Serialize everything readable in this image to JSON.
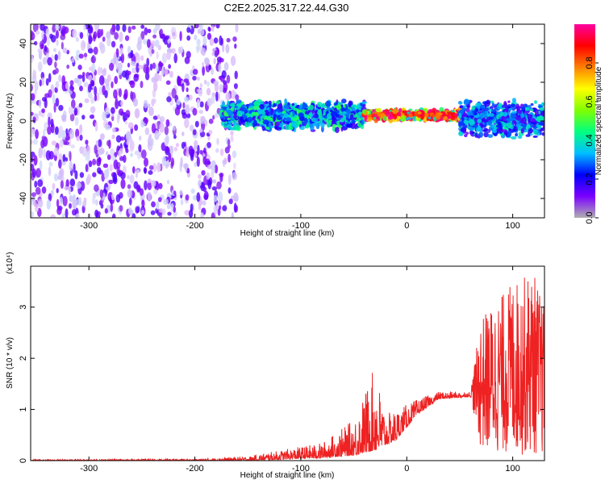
{
  "title": "C2E2.2025.317.22.44.G30",
  "chart_data": [
    {
      "type": "heatmap",
      "xlabel": "Height of straight line (km)",
      "ylabel": "Frequency (Hz)",
      "xlim": [
        -355,
        130
      ],
      "ylim": [
        -50,
        50
      ],
      "xticks": [
        -300,
        -200,
        -100,
        0,
        100
      ],
      "yticks": [
        -40,
        -20,
        0,
        20,
        40
      ],
      "colorbar": {
        "label": "Normalized spectral amplitude",
        "range": [
          0.0,
          1.0
        ],
        "ticks": [
          0.0,
          0.2,
          0.4,
          0.6,
          0.8
        ],
        "colors": [
          "#b0b0b0",
          "#7b00ff",
          "#0000ff",
          "#00bfff",
          "#00ff80",
          "#80ff00",
          "#ffff00",
          "#ff8000",
          "#ff0000",
          "#ff00a0"
        ]
      },
      "bands": [
        {
          "x": [
            -355,
            -160
          ],
          "freq_center": 0,
          "freq_halfwidth": 50,
          "amplitude": 0.12
        },
        {
          "x": [
            -175,
            -40
          ],
          "freq_center": 3,
          "freq_halfwidth": 8,
          "amplitude": 0.35
        },
        {
          "x": [
            -40,
            50
          ],
          "freq_center": 3,
          "freq_halfwidth": 3,
          "amplitude": 0.85
        },
        {
          "x": [
            50,
            130
          ],
          "freq_center": 1,
          "freq_halfwidth": 10,
          "amplitude": 0.3
        }
      ]
    },
    {
      "type": "line",
      "xlabel": "Height of straight line (km)",
      "ylabel": "SNR (10 * v/v)",
      "y_multiplier": "(x10⁴)",
      "xlim": [
        -355,
        130
      ],
      "ylim": [
        0,
        3.8
      ],
      "xticks": [
        -300,
        -200,
        -100,
        0,
        100
      ],
      "yticks": [
        0,
        1,
        2,
        3
      ],
      "color": "#ee2222",
      "envelope": [
        {
          "x": -355,
          "low": 0.0,
          "high": 0.02
        },
        {
          "x": -200,
          "low": 0.0,
          "high": 0.03
        },
        {
          "x": -150,
          "low": 0.0,
          "high": 0.08
        },
        {
          "x": -120,
          "low": 0.02,
          "high": 0.2
        },
        {
          "x": -80,
          "low": 0.05,
          "high": 0.35
        },
        {
          "x": -50,
          "low": 0.1,
          "high": 0.8
        },
        {
          "x": -30,
          "low": 0.2,
          "high": 1.85
        },
        {
          "x": -20,
          "low": 0.3,
          "high": 0.9
        },
        {
          "x": -10,
          "low": 0.4,
          "high": 1.0
        },
        {
          "x": 10,
          "low": 0.9,
          "high": 1.2
        },
        {
          "x": 30,
          "low": 1.2,
          "high": 1.35
        },
        {
          "x": 60,
          "low": 1.25,
          "high": 1.35
        },
        {
          "x": 70,
          "low": 0.2,
          "high": 2.8
        },
        {
          "x": 100,
          "low": 0.1,
          "high": 3.5
        },
        {
          "x": 120,
          "low": 0.1,
          "high": 3.7
        },
        {
          "x": 130,
          "low": 0.1,
          "high": 3.0
        }
      ]
    }
  ]
}
